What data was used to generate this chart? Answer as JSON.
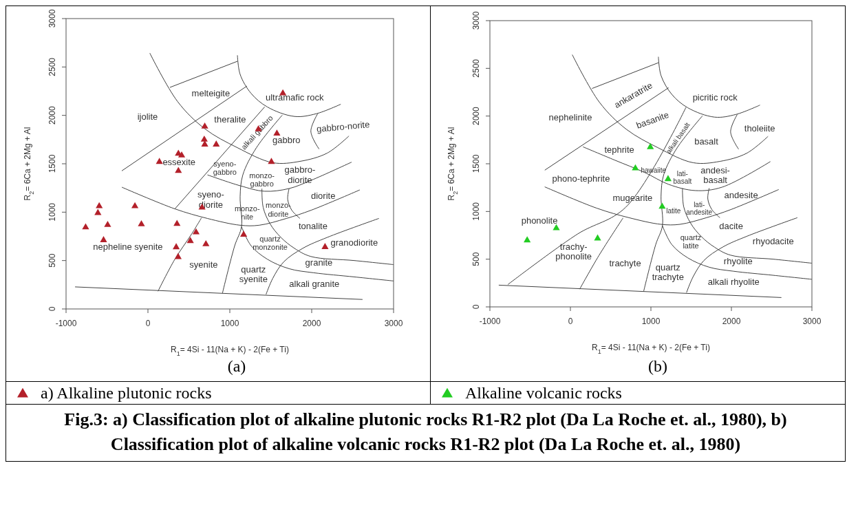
{
  "chart_data": [
    {
      "type": "scatter",
      "title": "(a)",
      "xlabel": "R$_{1}$= 4Si - 11(Na + K) - 2(Fe + Ti)",
      "ylabel": "R$_{2}$= 6Ca + 2Mg + Al",
      "xlim": [
        -1000,
        3000
      ],
      "ylim": [
        0,
        3000
      ],
      "xticks": [
        -1000,
        0,
        1000,
        2000,
        3000
      ],
      "yticks": [
        0,
        500,
        1000,
        1500,
        2000,
        2500,
        3000
      ],
      "legend": "bottom",
      "marker": "triangle",
      "series": [
        {
          "name": "a) Alkaline plutonic rocks",
          "type": "scatter",
          "color": "#b3202a",
          "x": [
            694,
            688,
            694,
            834,
            372,
            412,
            140,
            372,
            1648,
            1349,
            1575,
            1508,
            -595,
            -611,
            -761,
            -492,
            -542,
            -159,
            -80,
            355,
            661,
            588,
            518,
            345,
            708,
            369,
            1169,
            2163
          ],
          "values": [
            1885,
            1750,
            1699,
            1699,
            1604,
            1587,
            1520,
            1427,
            2228,
            1857,
            1812,
            1520,
            1062,
            992,
            843,
            868,
            711,
            1062,
            876,
            879,
            1048,
            792,
            702,
            638,
            669,
            537,
            767,
            640
          ]
        },
        {
          "type": "line",
          "marker": "none",
          "color": "#404040",
          "x": [
            -890,
            2621
          ],
          "values": [
            228,
            98
          ]
        },
        {
          "type": "line",
          "marker": "none",
          "color": "#404040",
          "x": [
            23,
            362,
            694,
            1093,
            1525,
            1857,
            2189,
            2455
          ],
          "values": [
            2643,
            2143,
            1862,
            1666,
            1511,
            1525,
            1610,
            1787
          ]
        },
        {
          "type": "line",
          "marker": "none",
          "color": "#404040",
          "x": [
            1093,
            1126,
            1259,
            1458,
            1790,
            2056,
            2355
          ],
          "values": [
            2621,
            2424,
            2228,
            2087,
            1989,
            2017,
            2115
          ]
        },
        {
          "type": "line",
          "marker": "none",
          "color": "#404040",
          "x": [
            269,
            1093
          ],
          "values": [
            2289,
            2559
          ]
        },
        {
          "type": "line",
          "marker": "none",
          "color": "#404040",
          "x": [
            -319,
            1209
          ],
          "values": [
            1427,
            2303
          ]
        },
        {
          "type": "line",
          "marker": "none",
          "color": "#404040",
          "x": [
            329,
            1425
          ],
          "values": [
            1034,
            2087
          ]
        },
        {
          "type": "line",
          "marker": "none",
          "color": "#404040",
          "x": [
            1641,
            1325,
            1159,
            1126,
            1143,
            1060,
            910
          ],
          "values": [
            2003,
            1666,
            1385,
            1160,
            851,
            654,
            163
          ]
        },
        {
          "type": "line",
          "marker": "none",
          "color": "#404040",
          "x": [
            -319,
            329,
            727,
            1126,
            1359,
            1691,
            1993,
            2588
          ],
          "values": [
            1258,
            1034,
            935,
            865,
            865,
            935,
            1020,
            1230
          ]
        },
        {
          "type": "line",
          "marker": "none",
          "color": "#404040",
          "x": [
            727,
            1126,
            1425,
            1724,
            1993,
            2488
          ],
          "values": [
            1385,
            1273,
            1216,
            1244,
            1329,
            1517
          ]
        },
        {
          "type": "line",
          "marker": "none",
          "color": "#404040",
          "x": [
            2073,
            1990,
            2090
          ],
          "values": [
            2017,
            1834,
            1652
          ]
        },
        {
          "type": "line",
          "marker": "none",
          "color": "#404040",
          "x": [
            1392,
            1408,
            1492,
            1624,
            1790,
            1990,
            2521,
            3000
          ],
          "values": [
            1244,
            1048,
            879,
            739,
            626,
            542,
            500,
            458
          ]
        },
        {
          "type": "line",
          "marker": "none",
          "color": "#404040",
          "x": [
            1143,
            1259,
            1458,
            1724,
            2023,
            2521,
            3000
          ],
          "values": [
            851,
            654,
            514,
            416,
            374,
            331,
            289
          ]
        },
        {
          "type": "line",
          "marker": "none",
          "color": "#404040",
          "x": [
            1442,
            1525,
            1658,
            1890,
            2189,
            2820
          ],
          "values": [
            149,
            317,
            486,
            626,
            739,
            935
          ]
        },
        {
          "type": "line",
          "marker": "none",
          "color": "#404040",
          "x": [
            1724,
            1707,
            1757,
            1857
          ],
          "values": [
            1244,
            1132,
            1020,
            935
          ]
        },
        {
          "type": "line",
          "marker": "none",
          "color": "#404040",
          "x": [
            123,
            329,
            528,
            654
          ],
          "values": [
            183,
            514,
            767,
            941
          ]
        }
      ],
      "annotations": [
        "melteigite",
        "ultramafic rock",
        "ijolite",
        "theralite",
        "alkali gabbro",
        "gabbro",
        "gabbro-norite",
        "essexite",
        "syeno-\ngabbro",
        "monzo-\ngabbro",
        "gabbro-\ndiorite",
        "syeno-\ndiorite",
        "monzo-\nnite",
        "monzo-\ndiorite",
        "diorite",
        "tonalite",
        "quartz\nmonzonite",
        "granodiorite",
        "nepheline syenite",
        "syenite",
        "quartz\nsyenite",
        "granite",
        "alkali granite",
        "Fig.3: a) Classification plot of alkaline plutonic rocks R1-R2 plot (Da La Roche et. al., 1980), b) Classification plot of alkaline volcanic rocks R1-R2 plot (Da La Roche et. al., 1980)"
      ]
    },
    {
      "type": "scatter",
      "title": "(b)",
      "xlabel": "R$_{1}$= 4Si - 11(Na + K) - 2(Fe + Ti)",
      "ylabel": "R$_{2}$= 6Ca + 2Mg + Al",
      "xlim": [
        -1000,
        3000
      ],
      "ylim": [
        0,
        3000
      ],
      "xticks": [
        -1000,
        0,
        1000,
        2000,
        3000
      ],
      "yticks": [
        0,
        500,
        1000,
        1500,
        2000,
        2500,
        3000
      ],
      "legend": "bottom",
      "marker": "triangle",
      "series": [
        {
          "name": "Alkaline volcanic rocks",
          "type": "scatter",
          "color": "#22cc22",
          "x": [
            993,
            807,
            1213,
            1140,
            -175,
            -537,
            338
          ],
          "values": [
            1675,
            1452,
            1340,
            1050,
            825,
            698,
            718
          ]
        },
        {
          "type": "line",
          "marker": "none",
          "color": "#404040",
          "x": [
            -890,
            2621
          ],
          "values": [
            228,
            98
          ]
        },
        {
          "type": "line",
          "marker": "none",
          "color": "#404040",
          "x": [
            23,
            362,
            694,
            1093,
            1525,
            1857,
            2189,
            2455
          ],
          "values": [
            2643,
            2143,
            1862,
            1666,
            1511,
            1525,
            1610,
            1787
          ]
        },
        {
          "type": "line",
          "marker": "none",
          "color": "#404040",
          "x": [
            1093,
            1126,
            1259,
            1458,
            1790,
            2056,
            2355
          ],
          "values": [
            2621,
            2424,
            2228,
            2087,
            1989,
            2017,
            2115
          ]
        },
        {
          "type": "line",
          "marker": "none",
          "color": "#404040",
          "x": [
            269,
            1093
          ],
          "values": [
            2289,
            2559
          ]
        },
        {
          "type": "line",
          "marker": "none",
          "color": "#404040",
          "x": [
            -318,
            1220
          ],
          "values": [
            1433,
            2297
          ]
        },
        {
          "type": "line",
          "marker": "none",
          "color": "#404040",
          "x": [
            -777,
            88,
            687,
            1436
          ],
          "values": [
            234,
            763,
            1044,
            2092
          ]
        },
        {
          "type": "line",
          "marker": "none",
          "color": "#404040",
          "x": [
            1641,
            1325,
            1159,
            1126,
            1143,
            1060,
            910
          ],
          "values": [
            2003,
            1666,
            1385,
            1160,
            851,
            654,
            163
          ]
        },
        {
          "type": "line",
          "marker": "none",
          "color": "#404040",
          "x": [
            -319,
            329,
            727,
            1126,
            1359,
            1691,
            1993,
            2588
          ],
          "values": [
            1258,
            1034,
            935,
            865,
            865,
            935,
            1020,
            1230
          ]
        },
        {
          "type": "line",
          "marker": "none",
          "color": "#404040",
          "x": [
            155,
            554,
            920,
            1220,
            1553,
            1885,
            2484
          ],
          "values": [
            1678,
            1537,
            1410,
            1284,
            1219,
            1255,
            1523
          ]
        },
        {
          "type": "line",
          "marker": "none",
          "color": "#404040",
          "x": [
            2073,
            1990,
            2090
          ],
          "values": [
            2017,
            1834,
            1652
          ]
        },
        {
          "type": "line",
          "marker": "none",
          "color": "#404040",
          "x": [
            1392,
            1408,
            1492,
            1624,
            1790,
            1990,
            2521,
            3000
          ],
          "values": [
            1244,
            1048,
            879,
            739,
            626,
            542,
            500,
            458
          ]
        },
        {
          "type": "line",
          "marker": "none",
          "color": "#404040",
          "x": [
            1143,
            1259,
            1458,
            1724,
            2023,
            2521,
            3000
          ],
          "values": [
            851,
            654,
            514,
            416,
            374,
            331,
            289
          ]
        },
        {
          "type": "line",
          "marker": "none",
          "color": "#404040",
          "x": [
            1442,
            1525,
            1658,
            1890,
            2189,
            2820
          ],
          "values": [
            149,
            317,
            486,
            626,
            739,
            935
          ]
        },
        {
          "type": "line",
          "marker": "none",
          "color": "#404040",
          "x": [
            1724,
            1707,
            1757,
            1857
          ],
          "values": [
            1244,
            1132,
            1020,
            935
          ]
        },
        {
          "type": "line",
          "marker": "none",
          "color": "#404040",
          "x": [
            115,
            354,
            654
          ],
          "values": [
            186,
            538,
            932
          ]
        }
      ],
      "annotations": [
        "ankaratrite",
        "picritic rock",
        "nephelinite",
        "basanite",
        "tholeiite",
        "alkali basalt",
        "basalt",
        "tephrite",
        "hawaiite",
        "lati-\nbasalt",
        "andesi-\nbasalt",
        "phono-tephrite",
        "mugearite",
        "andesite",
        "latite",
        "lati-\nandesite",
        "phonolite",
        "dacite",
        "quartz\nlatite",
        "rhyodacite",
        "trachy-\nphonolite",
        "trachyte",
        "quartz\ntrachyte",
        "rhyolite",
        "alkali rhyolite"
      ]
    }
  ]
}
